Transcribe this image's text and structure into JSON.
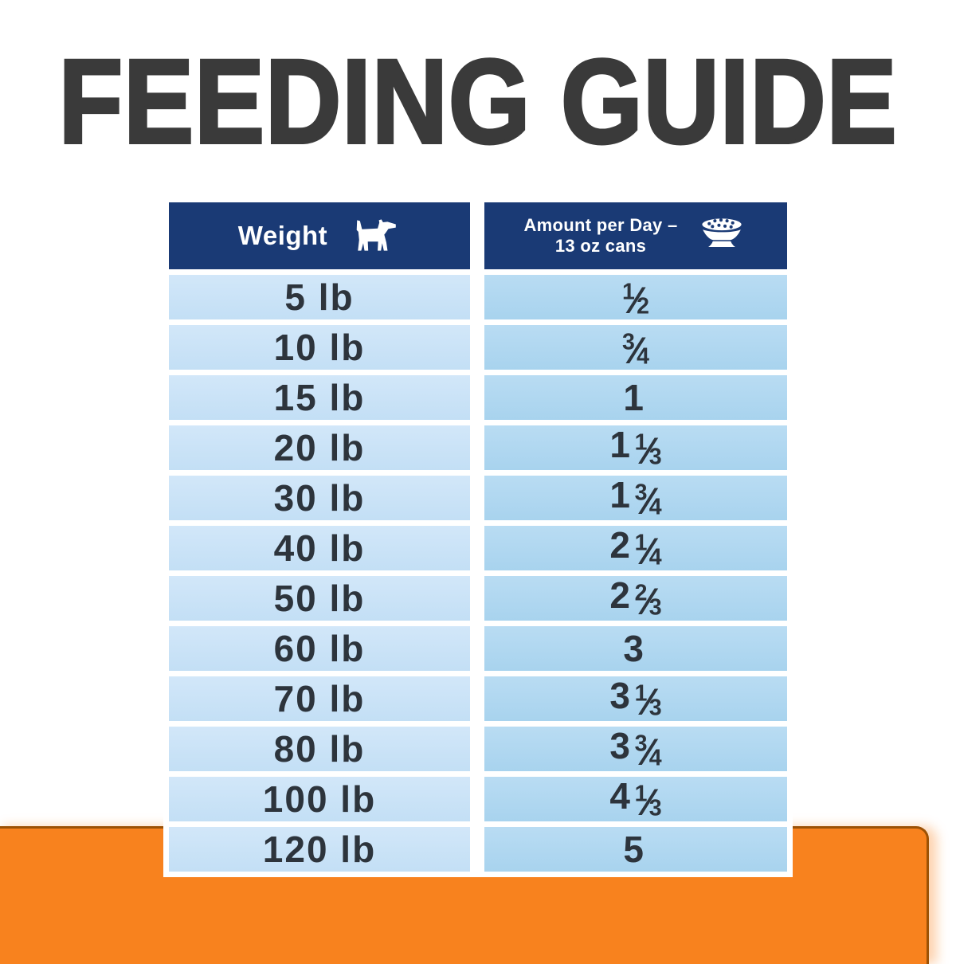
{
  "page": {
    "title": "FEEDING GUIDE"
  },
  "colors": {
    "title_gray": "#3a3a3a",
    "header_navy": "#1a3a75",
    "row_left_blue": "#c9e3f7",
    "row_right_blue": "#aed6f0",
    "row_text": "#2d343c",
    "orange": "#f8821e",
    "orange_border": "#9c5205",
    "background": "#ffffff"
  },
  "table": {
    "header": {
      "weight_label": "Weight",
      "weight_icon": "dog-icon",
      "amount_label_line1": "Amount per Day –",
      "amount_label_line2": "13 oz cans",
      "amount_icon": "food-bowl-icon"
    },
    "rows": [
      {
        "weight": "5 lb",
        "amount": "1/2"
      },
      {
        "weight": "10 lb",
        "amount": "3/4"
      },
      {
        "weight": "15 lb",
        "amount": "1"
      },
      {
        "weight": "20 lb",
        "amount": "1 1/3"
      },
      {
        "weight": "30 lb",
        "amount": "1 3/4"
      },
      {
        "weight": "40 lb",
        "amount": "2 1/4"
      },
      {
        "weight": "50 lb",
        "amount": "2 2/3"
      },
      {
        "weight": "60 lb",
        "amount": "3"
      },
      {
        "weight": "70 lb",
        "amount": "3 1/3"
      },
      {
        "weight": "80 lb",
        "amount": "3 3/4"
      },
      {
        "weight": "100 lb",
        "amount": "4 1/3"
      },
      {
        "weight": "120 lb",
        "amount": "5"
      }
    ]
  },
  "chart_data": {
    "type": "table",
    "title": "FEEDING GUIDE",
    "columns": [
      "Weight",
      "Amount per Day – 13 oz cans"
    ],
    "rows": [
      [
        "5 lb",
        "1/2"
      ],
      [
        "10 lb",
        "3/4"
      ],
      [
        "15 lb",
        "1"
      ],
      [
        "20 lb",
        "1 1/3"
      ],
      [
        "30 lb",
        "1 3/4"
      ],
      [
        "40 lb",
        "2 1/4"
      ],
      [
        "50 lb",
        "2 2/3"
      ],
      [
        "60 lb",
        "3"
      ],
      [
        "70 lb",
        "3 1/3"
      ],
      [
        "80 lb",
        "3 3/4"
      ],
      [
        "100 lb",
        "4 1/3"
      ],
      [
        "120 lb",
        "5"
      ]
    ]
  }
}
